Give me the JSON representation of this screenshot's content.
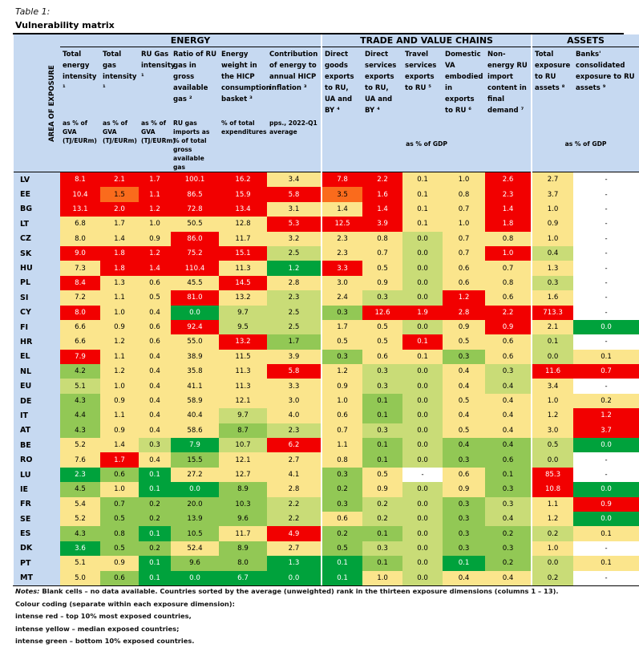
{
  "caption": "Table 1:",
  "title": "Vulnerability matrix",
  "groups": [
    {
      "label": "ENERGY",
      "span": 6
    },
    {
      "label": "TRADE AND VALUE CHAINS",
      "span": 5
    },
    {
      "label": "ASSETS",
      "span": 2
    }
  ],
  "area_label": "AREA OF EXPOSURE",
  "columns": [
    {
      "header": "Total energy intensity ¹",
      "unit": "as % of GVA (TJ/EURm)"
    },
    {
      "header": "Total gas intensity ¹",
      "unit": "as % of GVA (TJ/EURm)"
    },
    {
      "header": "RU Gas intensity ¹",
      "unit": "as % of GVA (TJ/EURm)"
    },
    {
      "header": "Ratio of RU gas in gross available gas ²",
      "unit": "RU gas imports as % of total gross available gas"
    },
    {
      "header": "Energy weight in the HICP consumption basket ³",
      "unit": "% of total expenditures"
    },
    {
      "header": "Contribution of energy to annual HICP inflation ³",
      "unit": "pps., 2022-Q1 average"
    },
    {
      "header": "Direct goods exports to RU, UA and BY ⁴",
      "unit": ""
    },
    {
      "header": "Direct services exports to RU, UA and BY ⁴",
      "unit": ""
    },
    {
      "header": "Travel services exports to RU ⁵",
      "unit": ""
    },
    {
      "header": "Domestic VA embodied in exports to RU ⁶",
      "unit": ""
    },
    {
      "header": "Non-energy RU import content in final demand ⁷",
      "unit": ""
    },
    {
      "header": "Total exposure to RU assets ⁸",
      "unit": ""
    },
    {
      "header": "Banks' consolidated exposure to RU assets ⁹",
      "unit": ""
    }
  ],
  "trade_unit": "as % of GDP",
  "assets_unit": "as % of GDP",
  "colors": {
    "R": "#f20000",
    "O": "#fa6b1c",
    "Y": "#fbe58c",
    "L": "#c9dc77",
    "G": "#92c855",
    "D": "#00a23c",
    "W": "#ffffff"
  },
  "rows": [
    {
      "c": "LV",
      "v": [
        "8.1",
        "2.1",
        "1.7",
        "100.1",
        "16.2",
        "3.4",
        "7.8",
        "2.2",
        "0.1",
        "1.0",
        "2.6",
        "2.7",
        "-"
      ],
      "k": "RRRRRYRRYYRYW"
    },
    {
      "c": "EE",
      "v": [
        "10.4",
        "1.5",
        "1.1",
        "86.5",
        "15.9",
        "5.8",
        "3.5",
        "1.6",
        "0.1",
        "0.8",
        "2.3",
        "3.7",
        "-"
      ],
      "k": "RORRRRORYYRYW"
    },
    {
      "c": "BG",
      "v": [
        "13.1",
        "2.0",
        "1.2",
        "72.8",
        "13.4",
        "3.1",
        "1.4",
        "1.4",
        "0.1",
        "0.7",
        "1.4",
        "1.0",
        "-"
      ],
      "k": "RRRRRYYRYYRYW"
    },
    {
      "c": "LT",
      "v": [
        "6.8",
        "1.7",
        "1.0",
        "50.5",
        "12.8",
        "5.3",
        "12.5",
        "3.9",
        "0.1",
        "1.0",
        "1.8",
        "0.9",
        "-"
      ],
      "k": "YYYYYRRRYYRYW"
    },
    {
      "c": "CZ",
      "v": [
        "8.0",
        "1.4",
        "0.9",
        "86.0",
        "11.7",
        "3.2",
        "2.3",
        "0.8",
        "0.0",
        "0.7",
        "0.8",
        "1.0",
        "-"
      ],
      "k": "YYYRYYYYLYYYW"
    },
    {
      "c": "SK",
      "v": [
        "9.0",
        "1.8",
        "1.2",
        "75.2",
        "15.1",
        "2.5",
        "2.3",
        "0.7",
        "0.0",
        "0.7",
        "1.0",
        "0.4",
        "-"
      ],
      "k": "RRRRRLYYLYRLW"
    },
    {
      "c": "HU",
      "v": [
        "7.3",
        "1.8",
        "1.4",
        "110.4",
        "11.3",
        "1.2",
        "3.3",
        "0.5",
        "0.0",
        "0.6",
        "0.7",
        "1.3",
        "-"
      ],
      "k": "YRRRYDRYLYYYW"
    },
    {
      "c": "PL",
      "v": [
        "8.4",
        "1.3",
        "0.6",
        "45.5",
        "14.5",
        "2.8",
        "3.0",
        "0.9",
        "0.0",
        "0.6",
        "0.8",
        "0.3",
        "-"
      ],
      "k": "RYYYRYYYLYYLW"
    },
    {
      "c": "SI",
      "v": [
        "7.2",
        "1.1",
        "0.5",
        "81.0",
        "13.2",
        "2.3",
        "2.4",
        "0.3",
        "0.0",
        "1.2",
        "0.6",
        "1.6",
        "-"
      ],
      "k": "YYYRYLYLLRYYW"
    },
    {
      "c": "CY",
      "v": [
        "8.0",
        "1.0",
        "0.4",
        "0.0",
        "9.7",
        "2.5",
        "0.3",
        "12.6",
        "1.9",
        "2.8",
        "2.2",
        "713.3",
        "-"
      ],
      "k": "RYYDLLGRRRRRW"
    },
    {
      "c": "FI",
      "v": [
        "6.6",
        "0.9",
        "0.6",
        "92.4",
        "9.5",
        "2.5",
        "1.7",
        "0.5",
        "0.0",
        "0.9",
        "0.9",
        "2.1",
        "0.0"
      ],
      "k": "YYYRLLYYLYRYD"
    },
    {
      "c": "HR",
      "v": [
        "6.6",
        "1.2",
        "0.6",
        "55.0",
        "13.2",
        "1.7",
        "0.5",
        "0.5",
        "0.1",
        "0.5",
        "0.6",
        "0.1",
        "-"
      ],
      "k": "YYYYRGYYRYYLW"
    },
    {
      "c": "EL",
      "v": [
        "7.9",
        "1.1",
        "0.4",
        "38.9",
        "11.5",
        "3.9",
        "0.3",
        "0.6",
        "0.1",
        "0.3",
        "0.6",
        "0.0",
        "0.1"
      ],
      "k": "RYYYYYGYYGYLY"
    },
    {
      "c": "NL",
      "v": [
        "4.2",
        "1.2",
        "0.4",
        "35.8",
        "11.3",
        "5.8",
        "1.2",
        "0.3",
        "0.0",
        "0.4",
        "0.3",
        "11.6",
        "0.7"
      ],
      "k": "GYYYYRYLLYLRR"
    },
    {
      "c": "EU",
      "v": [
        "5.1",
        "1.0",
        "0.4",
        "41.1",
        "11.3",
        "3.3",
        "0.9",
        "0.3",
        "0.0",
        "0.4",
        "0.4",
        "3.4",
        "-"
      ],
      "k": "LYYYYYYLLYLYW"
    },
    {
      "c": "DE",
      "v": [
        "4.3",
        "0.9",
        "0.4",
        "58.9",
        "12.1",
        "3.0",
        "1.0",
        "0.1",
        "0.0",
        "0.5",
        "0.4",
        "1.0",
        "0.2"
      ],
      "k": "GYYYYYYGLYYYY"
    },
    {
      "c": "IT",
      "v": [
        "4.4",
        "1.1",
        "0.4",
        "40.4",
        "9.7",
        "4.0",
        "0.6",
        "0.1",
        "0.0",
        "0.4",
        "0.4",
        "1.2",
        "1.2"
      ],
      "k": "GYYYLYYGLYYYR"
    },
    {
      "c": "AT",
      "v": [
        "4.3",
        "0.9",
        "0.4",
        "58.6",
        "8.7",
        "2.3",
        "0.7",
        "0.3",
        "0.0",
        "0.5",
        "0.4",
        "3.0",
        "3.7"
      ],
      "k": "GYYYGLYLLYYYR"
    },
    {
      "c": "BE",
      "v": [
        "5.2",
        "1.4",
        "0.3",
        "7.9",
        "10.7",
        "6.2",
        "1.1",
        "0.1",
        "0.0",
        "0.4",
        "0.4",
        "0.5",
        "0.0"
      ],
      "k": "YYLDLRYGLGGLD"
    },
    {
      "c": "RO",
      "v": [
        "7.6",
        "1.7",
        "0.4",
        "15.5",
        "12.1",
        "2.7",
        "0.8",
        "0.1",
        "0.0",
        "0.3",
        "0.6",
        "0.0",
        "-"
      ],
      "k": "YRYGYYYGLGGLW"
    },
    {
      "c": "LU",
      "v": [
        "2.3",
        "0.6",
        "0.1",
        "27.2",
        "12.7",
        "4.1",
        "0.3",
        "0.5",
        "-",
        "0.6",
        "0.1",
        "85.3",
        "-"
      ],
      "k": "DGDYYYGYWYGRW"
    },
    {
      "c": "IE",
      "v": [
        "4.5",
        "1.0",
        "0.1",
        "0.0",
        "8.9",
        "2.8",
        "0.2",
        "0.9",
        "0.0",
        "0.9",
        "0.3",
        "10.8",
        "0.0"
      ],
      "k": "GYDDGYGYLYGRD"
    },
    {
      "c": "FR",
      "v": [
        "5.4",
        "0.7",
        "0.2",
        "20.0",
        "10.3",
        "2.2",
        "0.3",
        "0.2",
        "0.0",
        "0.3",
        "0.3",
        "1.1",
        "0.9"
      ],
      "k": "YGGGGLGLLGLYR"
    },
    {
      "c": "SE",
      "v": [
        "5.2",
        "0.5",
        "0.2",
        "13.9",
        "9.6",
        "2.2",
        "0.6",
        "0.2",
        "0.0",
        "0.3",
        "0.4",
        "1.2",
        "0.0"
      ],
      "k": "YGGGGLYLLGLYD"
    },
    {
      "c": "ES",
      "v": [
        "4.3",
        "0.8",
        "0.1",
        "10.5",
        "11.7",
        "4.9",
        "0.2",
        "0.1",
        "0.0",
        "0.3",
        "0.2",
        "0.2",
        "0.1"
      ],
      "k": "GGDGYRGGLGGLY"
    },
    {
      "c": "DK",
      "v": [
        "3.6",
        "0.5",
        "0.2",
        "52.4",
        "8.9",
        "2.7",
        "0.5",
        "0.3",
        "0.0",
        "0.3",
        "0.3",
        "1.0",
        "-"
      ],
      "k": "DGGYGYGLLGGYW"
    },
    {
      "c": "PT",
      "v": [
        "5.1",
        "0.9",
        "0.1",
        "9.6",
        "8.0",
        "1.3",
        "0.1",
        "0.1",
        "0.0",
        "0.1",
        "0.2",
        "0.0",
        "0.1"
      ],
      "k": "YYDGGDDGLDGLY"
    },
    {
      "c": "MT",
      "v": [
        "5.0",
        "0.6",
        "0.1",
        "0.0",
        "6.7",
        "0.0",
        "0.1",
        "1.0",
        "0.0",
        "0.4",
        "0.4",
        "0.2",
        "-"
      ],
      "k": "YGDDDDDYLYYLW"
    }
  ],
  "notes": {
    "label": "Notes:",
    "line1": " Blank cells – no data available. Countries sorted by the average (unweighted) rank in the thirteen exposure dimensions (columns 1 – 13).",
    "line2": "Colour coding (separate within each exposure dimension):",
    "line3": "intense red – top 10% most exposed countries,",
    "line4": "intense yellow – median exposed countries;",
    "line5": "intense green – bottom 10% exposed countries."
  }
}
